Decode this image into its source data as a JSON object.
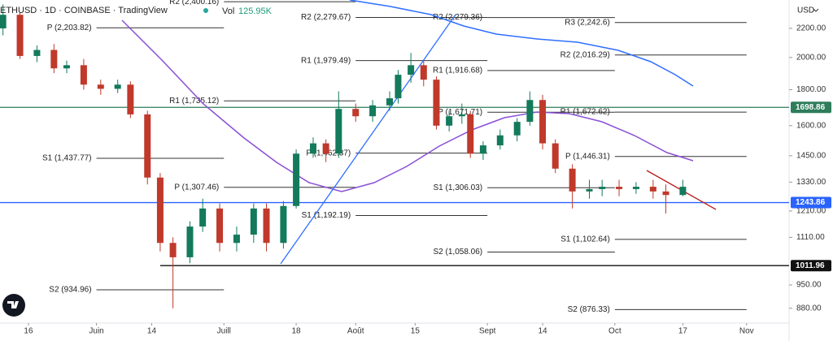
{
  "header": {
    "symbol": "ETHUSD · 1D · COINBASE · TradingView",
    "volume_label": "Vol",
    "volume": "125.95K",
    "currency": "USD"
  },
  "chart_data": {
    "type": "candlestick",
    "log_scale": true,
    "ylim": [
      834,
      2414
    ],
    "yticks": [
      {
        "value": 2200,
        "label": "2200.00"
      },
      {
        "value": 2000,
        "label": "2000.00"
      },
      {
        "value": 1800,
        "label": "1800.00"
      },
      {
        "value": 1600,
        "label": "1600.00"
      },
      {
        "value": 1450,
        "label": "1450.00"
      },
      {
        "value": 1330,
        "label": "1330.00"
      },
      {
        "value": 1210,
        "label": "1210.00"
      },
      {
        "value": 1110,
        "label": "1110.00"
      },
      {
        "value": 950,
        "label": "950.00"
      },
      {
        "value": 880,
        "label": "880.00"
      }
    ],
    "xlim": [
      -6.7,
      179
    ],
    "xticks": [
      {
        "value": 0,
        "label": "16"
      },
      {
        "value": 16,
        "label": "Juin"
      },
      {
        "value": 29,
        "label": "14"
      },
      {
        "value": 46,
        "label": "Juill"
      },
      {
        "value": 63,
        "label": "18"
      },
      {
        "value": 77,
        "label": "Août"
      },
      {
        "value": 91,
        "label": "15"
      },
      {
        "value": 108,
        "label": "Sept"
      },
      {
        "value": 121,
        "label": "14"
      },
      {
        "value": 138,
        "label": "Oct"
      },
      {
        "value": 154,
        "label": "17"
      },
      {
        "value": 169,
        "label": "Nov"
      }
    ],
    "up_color": "#137a5c",
    "down_color": "#c0392b",
    "x": [
      -6,
      -2,
      2,
      6,
      9,
      13,
      17,
      21,
      24,
      28,
      31,
      34,
      38,
      41,
      45,
      49,
      53,
      56,
      60,
      63,
      67,
      70,
      73,
      77,
      81,
      85,
      87,
      90,
      93,
      96,
      99,
      102,
      104,
      107,
      111,
      115,
      118,
      121,
      124,
      128,
      132,
      135,
      139,
      143,
      147,
      150,
      154
    ],
    "series": [
      {
        "open": [
          2200,
          2300,
          2010,
          2050,
          1930,
          1950,
          1830,
          1805,
          1830,
          1660,
          1350,
          1090,
          1040,
          1150,
          1220,
          1090,
          1120,
          1220,
          1090,
          1230,
          1460,
          1510,
          1460,
          1690,
          1650,
          1710,
          1750,
          1890,
          1950,
          1860,
          1600,
          1650,
          1660,
          1460,
          1500,
          1550,
          1620,
          1740,
          1510,
          1390,
          1290,
          1300,
          1310,
          1300,
          1310,
          1290,
          1275
        ],
        "high": [
          2380,
          2320,
          2080,
          2090,
          1980,
          1990,
          1860,
          1860,
          1850,
          1680,
          1370,
          1110,
          1170,
          1260,
          1240,
          1150,
          1240,
          1240,
          1250,
          1480,
          1540,
          1530,
          1790,
          1720,
          1740,
          1790,
          1920,
          2030,
          1980,
          1880,
          1680,
          1720,
          1680,
          1520,
          1580,
          1640,
          1790,
          1770,
          1530,
          1410,
          1340,
          1340,
          1340,
          1330,
          1340,
          1320,
          1340
        ],
        "low": [
          2150,
          1990,
          1970,
          1900,
          1900,
          1800,
          1770,
          1780,
          1640,
          1320,
          1060,
          880,
          1020,
          1130,
          1060,
          1060,
          1090,
          1060,
          1070,
          1220,
          1440,
          1420,
          1440,
          1620,
          1620,
          1680,
          1720,
          1840,
          1820,
          1580,
          1570,
          1610,
          1440,
          1430,
          1480,
          1520,
          1600,
          1480,
          1370,
          1220,
          1260,
          1270,
          1270,
          1280,
          1260,
          1200,
          1270
        ],
        "close": [
          2300,
          2010,
          2050,
          1930,
          1950,
          1830,
          1805,
          1830,
          1660,
          1350,
          1090,
          1040,
          1150,
          1220,
          1090,
          1120,
          1220,
          1090,
          1230,
          1460,
          1510,
          1460,
          1690,
          1650,
          1710,
          1750,
          1890,
          1950,
          1860,
          1600,
          1650,
          1660,
          1460,
          1500,
          1550,
          1620,
          1740,
          1510,
          1390,
          1290,
          1300,
          1310,
          1300,
          1310,
          1290,
          1275,
          1310
        ]
      }
    ],
    "levels": [
      {
        "label": "P (2,203.82)",
        "value": 2203.82,
        "start": 16,
        "end": 46
      },
      {
        "label": "S1 (1,437.77)",
        "value": 1437.77,
        "start": 16,
        "end": 46
      },
      {
        "label": "S2 (934.96)",
        "value": 934.96,
        "start": 16,
        "end": 46
      },
      {
        "label": "R2 (2,400.16)",
        "value": 2400.16,
        "start": 46,
        "end": 77
      },
      {
        "label": "R1 (1,735.12)",
        "value": 1735.12,
        "start": 46,
        "end": 77
      },
      {
        "label": "P (1,307.46)",
        "value": 1307.46,
        "start": 46,
        "end": 77
      },
      {
        "label": "R2 (2,279.67)",
        "value": 2279.67,
        "start": 77,
        "end": 108
      },
      {
        "label": "R1 (1,979.49)",
        "value": 1979.49,
        "start": 77,
        "end": 108
      },
      {
        "label": "P (1,462.37)",
        "value": 1462.37,
        "start": 77,
        "end": 108
      },
      {
        "label": "S1 (1,192.19)",
        "value": 1192.19,
        "start": 77,
        "end": 108
      },
      {
        "label": "R2 (2,279.36)",
        "value": 2279.36,
        "start": 108,
        "end": 138
      },
      {
        "label": "R1 (1,916.68)",
        "value": 1916.68,
        "start": 108,
        "end": 138
      },
      {
        "label": "P (1,671.71)",
        "value": 1671.71,
        "start": 108,
        "end": 138
      },
      {
        "label": "S1 (1,306.03)",
        "value": 1306.03,
        "start": 108,
        "end": 138
      },
      {
        "label": "S2 (1,058.06)",
        "value": 1058.06,
        "start": 108,
        "end": 138
      },
      {
        "label": "R3 (2,242.6)",
        "value": 2242.6,
        "start": 138,
        "end": 169
      },
      {
        "label": "R2 (2,016.29)",
        "value": 2016.29,
        "start": 138,
        "end": 169
      },
      {
        "label": "R1 (1,672.62)",
        "value": 1672.62,
        "start": 138,
        "end": 169
      },
      {
        "label": "P (1,446.31)",
        "value": 1446.31,
        "start": 138,
        "end": 169
      },
      {
        "label": "S1 (1,102.64)",
        "value": 1102.64,
        "start": 138,
        "end": 169
      },
      {
        "label": "S2 (876.33)",
        "value": 876.33,
        "start": 138,
        "end": 169
      }
    ],
    "price_lines": [
      {
        "value": 1698.86,
        "label": "1698.86",
        "color": "#2e7d5b",
        "start": -6.7
      },
      {
        "value": 1243.86,
        "label": "1243.86",
        "color": "#2962ff",
        "start": -6.7
      },
      {
        "value": 1011.96,
        "label": "1011.96",
        "color": "#111111",
        "start": 31
      }
    ]
  }
}
